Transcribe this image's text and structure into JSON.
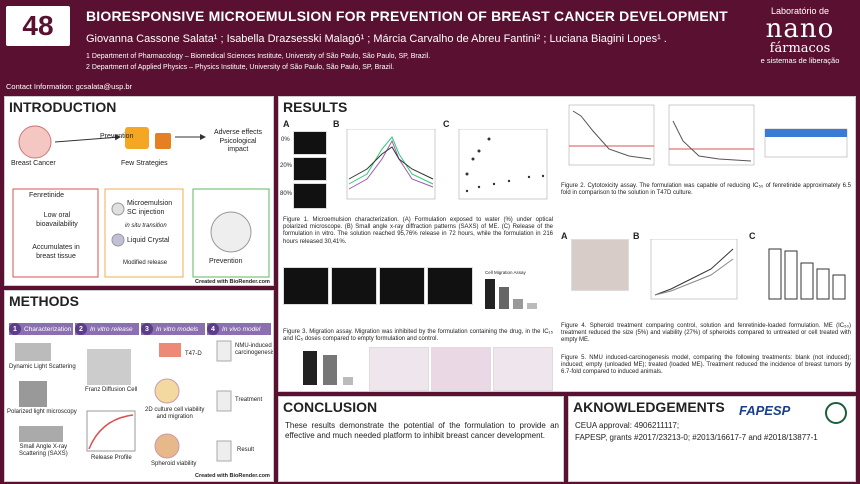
{
  "header": {
    "poster_number": "48",
    "title": "BIORESPONSIVE MICROEMULSION FOR PREVENTION OF BREAST CANCER DEVELOPMENT",
    "authors": "Giovanna Cassone Salata¹ ; Isabella Drazsesski Malagó¹ ; Márcia Carvalho de Abreu Fantini² ; Luciana Biagini Lopes¹ .",
    "affiliation1": "1 Department of Pharmacology – Biomedical Sciences Institute, University of São Paulo, São Paulo, SP, Brazil.",
    "affiliation2": "2 Department of Applied Physics – Physics Institute, University of São Paulo, São Paulo, SP, Brazil.",
    "contact": "Contact Information: gcsalata@usp.br"
  },
  "logo": {
    "line1": "Laboratório de",
    "line2": "nano",
    "line3": "fármacos",
    "line4": "e sistemas de liberação"
  },
  "intro": {
    "title": "INTRODUCTION",
    "prevention": "Prevention",
    "adverse": "Adverse effects\nPsicological\nimpact",
    "breast_cancer": "Breast Cancer",
    "few_strategies": "Few Strategies",
    "fenretinide": "Fenretinide",
    "low_oral": "Low oral\nbioavailability",
    "accumulates": "Accumulates in\nbreast tissue",
    "me_sc": "Microemulsion\nSC injection",
    "in_situ": "in situ transition",
    "liquid_crystal": "Liquid Crystal",
    "modified_release": "Modified release",
    "prevention2": "Prevention",
    "credit": "Created with BioRender.com"
  },
  "methods": {
    "title": "METHODS",
    "steps": [
      {
        "num": "1",
        "label": "Characterization"
      },
      {
        "num": "2",
        "label": "In vitro release"
      },
      {
        "num": "3",
        "label": "In vitro models"
      },
      {
        "num": "4",
        "label": "In vivo model"
      }
    ],
    "dls": "Dynamic Light Scattering",
    "plm": "Polarized light microscopy",
    "saxs": "Small Angle X-ray\nScattering (SAXS)",
    "franz": "Franz Diffusion Cell",
    "release_profile": "Release Profile",
    "t47d": "T47-D",
    "culture_2d": "2D culture cell viability\nand migration",
    "spheroid_viab": "Spheroid viability",
    "nmu": "NMU-induced\ncarcinogenesis",
    "treatment": "Treatment",
    "result": "Result",
    "credit": "Created with BioRender.com"
  },
  "results": {
    "title": "RESULTS",
    "fig1_caption": "Figure 1. Microemulsion characterization. (A) Formulation exposed to water (%) under optical polarized microscope. (B) Small angle x-ray diffraction patterns (SAXS) of ME. (C) Release of the formulation in vitro. The solution reached 95,76% release in 72 hours, while the formulation in 216 hours released 30,41%.",
    "fig2_caption": "Figure 2. Cytotoxicity assay. The formulation was capable of reducing IC₅₀ of fenretinide approximately 6.5 fold in comparison to the solution in T47D culture.",
    "fig3_caption": "Figure 3. Migration assay. Migration was inhibited by the formulation containing the drug, in the IC₁₅ and IC₅ doses compared to empty formulation and control.",
    "fig4_caption": "Figure 4. Spheroid treatment comparing control, solution and fenretinide-loaded formulation. ME (IC₅₀) treatment reduced the size (5%) and viability (27%) of spheroids compared to untreated or cell treated with empty ME.",
    "fig5_caption": "Figure 5. NMU induced-carcinogenesis model, comparing the following treatments: blank (not induced); induced; empty (unloaded ME); treated (loaded ME). Treatment reduced the incidence of breast tumors by 6.7-fold compared to induced animals.",
    "panel_a": "A",
    "panel_b": "B",
    "panel_c": "C",
    "pct_0": "0%",
    "pct_20": "20%",
    "pct_80": "80%",
    "migration_title": "Cell Migration Assay",
    "spheroid_ylabel": "Spheroid Viability (%)"
  },
  "conclusion": {
    "title": "CONCLUSION",
    "text": "These results demonstrate the potential of the formulation to provide an effective and much needed platform to inhibit breast cancer development."
  },
  "ack": {
    "title": "AKNOWLEDGEMENTS",
    "ceua": "CEUA approval: 4906211117;",
    "fapesp": "FAPESP, grants #2017/23213-0; #2013/16617-7 and #2018/13877-1",
    "fapesp_logo": "FAPESP"
  },
  "colors": {
    "brand": "#5a1030",
    "methods_purple": "#8b6fb0",
    "intro_red": "#d9534f",
    "intro_orange": "#f0ad4e",
    "intro_green": "#5cb85c"
  }
}
